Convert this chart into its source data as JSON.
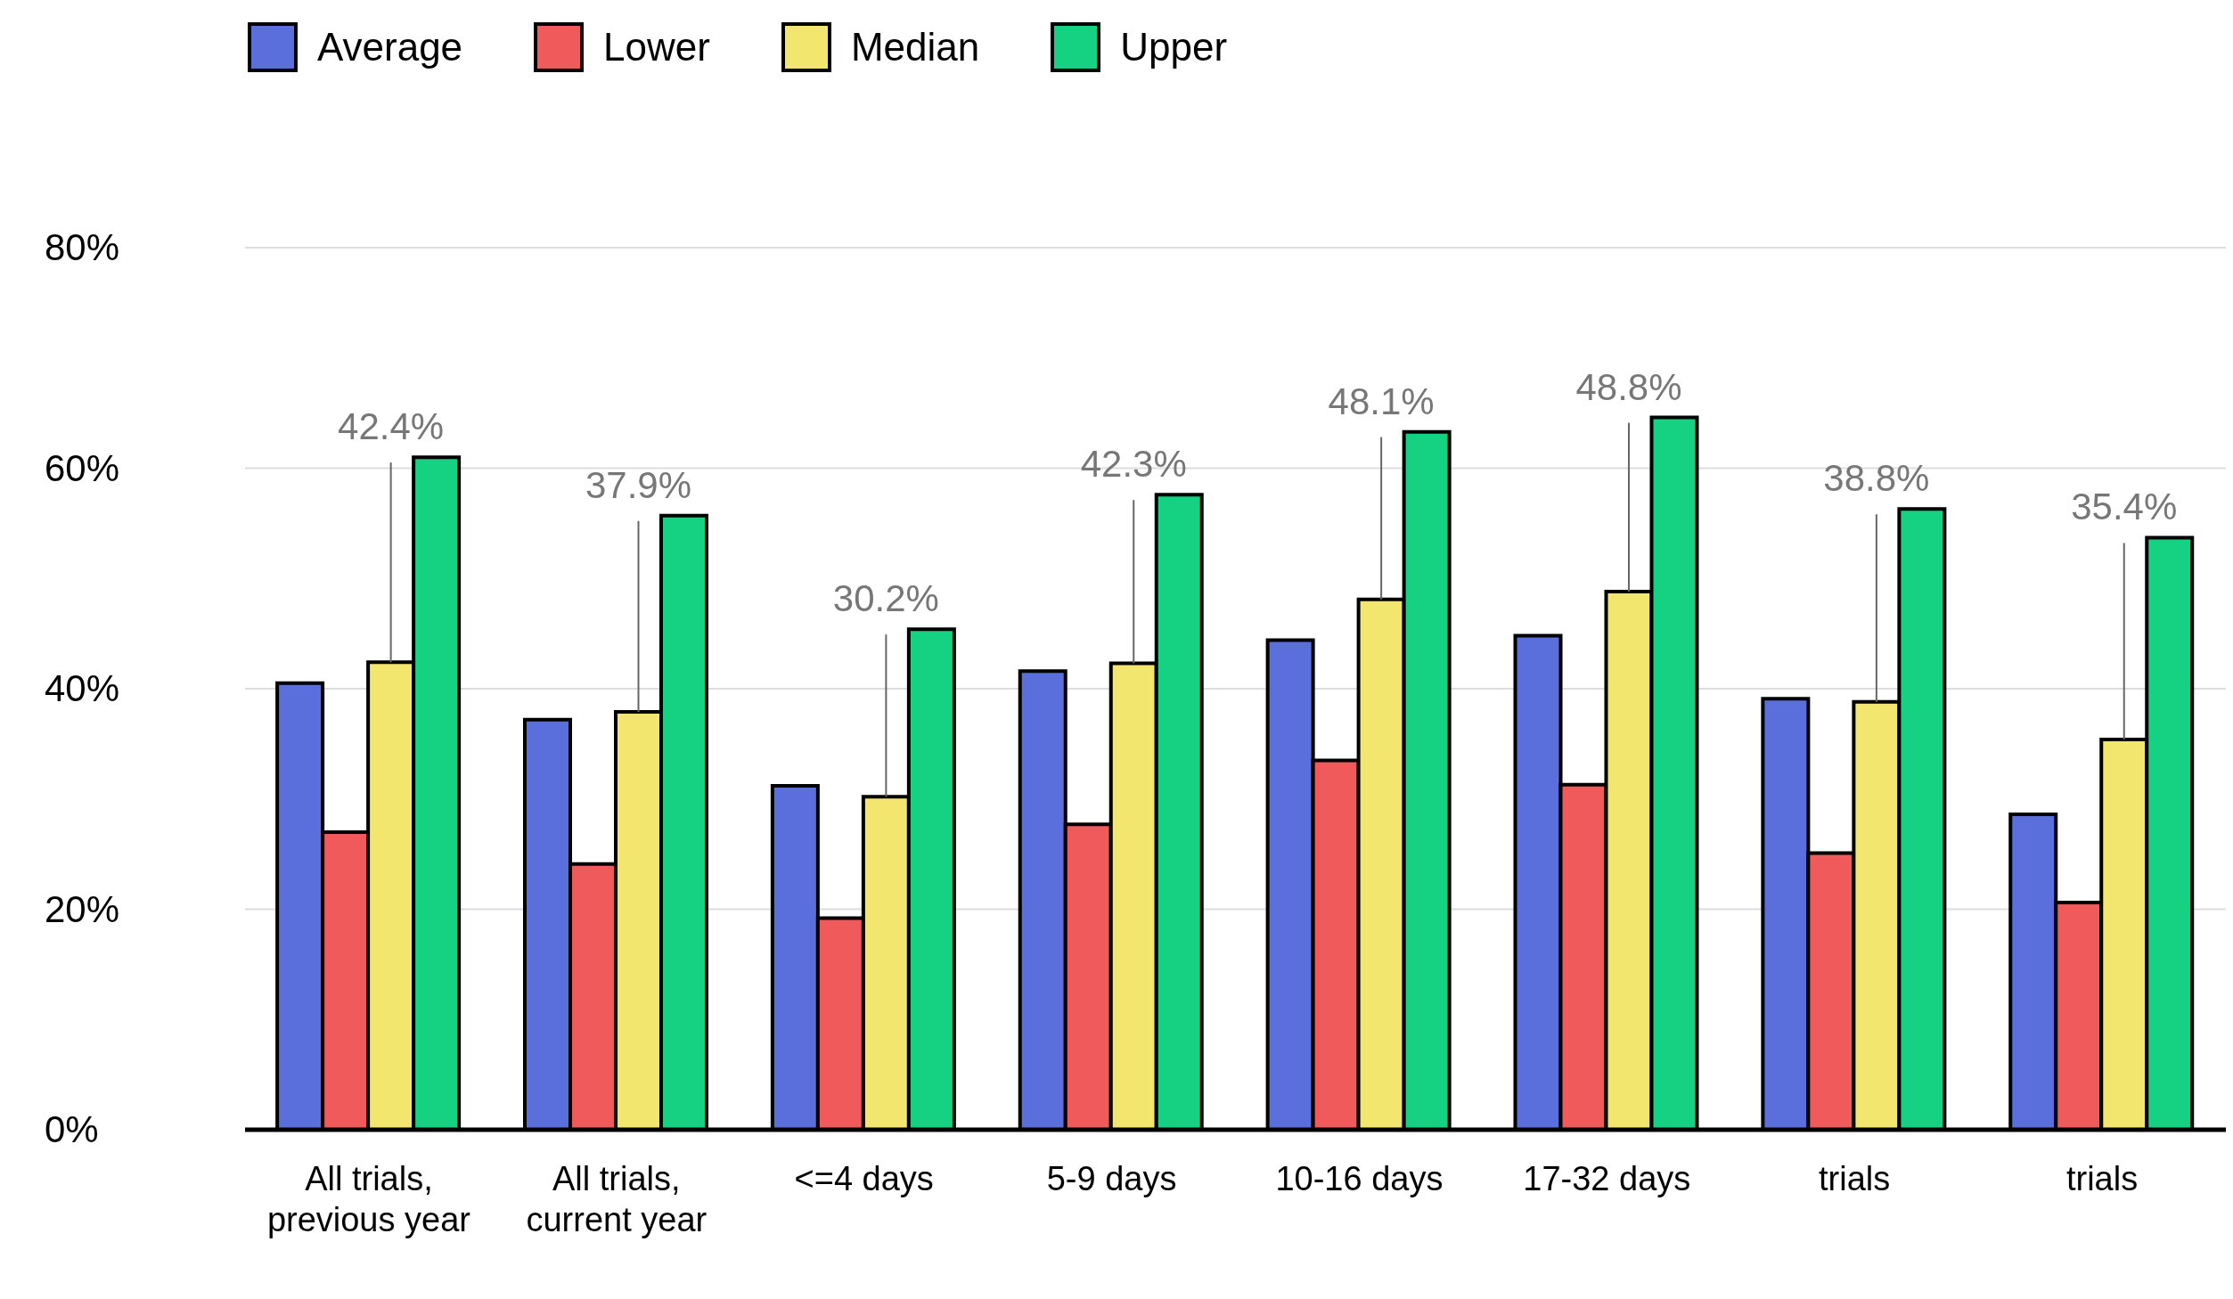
{
  "chart_data": {
    "type": "bar",
    "categories": [
      "All trials, previous year",
      "All trials, current year",
      "<=4 days",
      "5-9 days",
      "10-16 days",
      "17-32 days",
      "trials",
      "trials"
    ],
    "series": [
      {
        "name": "Average",
        "color": "#5a6fdc",
        "values": [
          40.5,
          37.2,
          31.2,
          41.6,
          44.4,
          44.8,
          39.1,
          28.6
        ]
      },
      {
        "name": "Lower",
        "color": "#f05a5a",
        "values": [
          27.0,
          24.1,
          19.2,
          27.7,
          33.5,
          31.3,
          25.1,
          20.6
        ]
      },
      {
        "name": "Median",
        "color": "#f2e66e",
        "values": [
          42.4,
          37.9,
          30.2,
          42.3,
          48.1,
          48.8,
          38.8,
          35.4
        ],
        "value_labels": [
          "42.4%",
          "37.9%",
          "30.2%",
          "42.3%",
          "48.1%",
          "48.8%",
          "38.8%",
          "35.4%"
        ]
      },
      {
        "name": "Upper",
        "color": "#14d282",
        "values": [
          61.0,
          55.7,
          45.4,
          57.6,
          63.3,
          64.6,
          56.3,
          53.7
        ]
      }
    ],
    "ylim": [
      0,
      80
    ],
    "yticks": [
      {
        "value": 0,
        "label": "0%"
      },
      {
        "value": 20,
        "label": "20%"
      },
      {
        "value": 40,
        "label": "40%"
      },
      {
        "value": 60,
        "label": "60%"
      },
      {
        "value": 80,
        "label": "80%"
      }
    ],
    "grid": "y",
    "legend": "top left"
  }
}
